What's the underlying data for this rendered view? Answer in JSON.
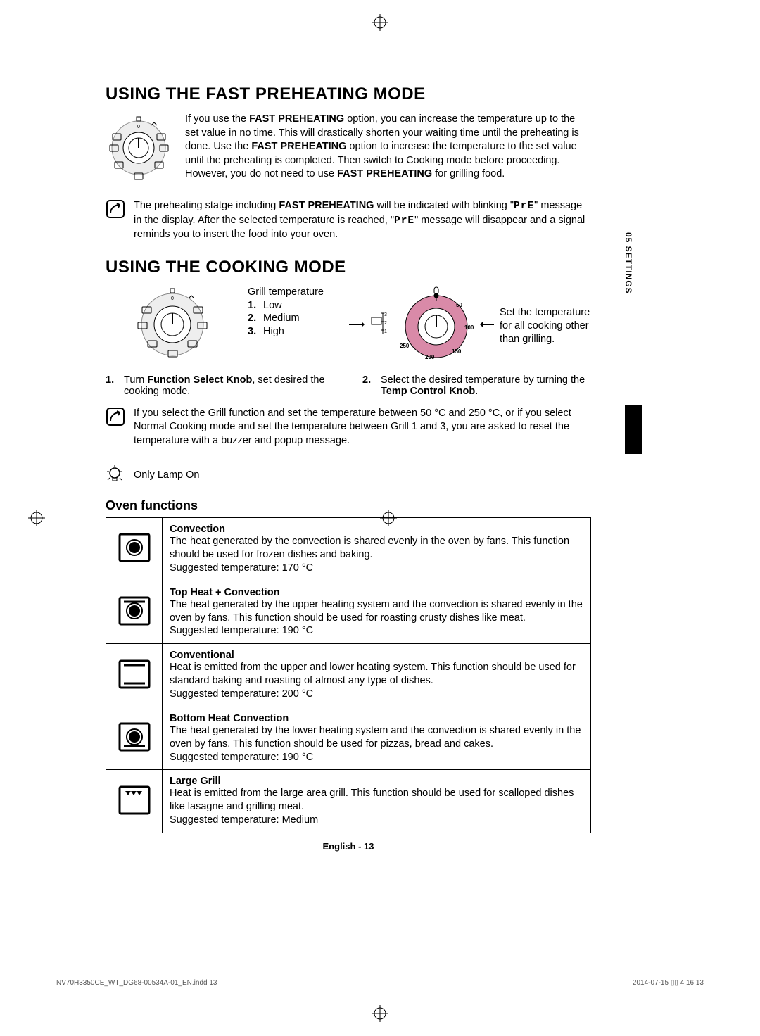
{
  "page": {
    "footer": "English - 13",
    "side_tab": "05  SETTINGS",
    "imprint_left": "NV70H3350CE_WT_DG68-00534A-01_EN.indd   13",
    "imprint_right": "2014-07-15   ▯▯ 4:16:13"
  },
  "section1": {
    "title": "USING THE FAST PREHEATING MODE",
    "intro_prefix": "If you use the ",
    "intro_bold1": "FAST PREHEATING",
    "intro_mid1": " option, you can increase the temperature up to the set value in no time. This will drastically shorten your waiting time until the preheating is done. Use the ",
    "intro_bold2": "FAST PREHEATING",
    "intro_mid2": " option to increase the temperature to the set value until the preheating is completed. Then switch to Cooking mode before proceeding. However, you do not need to use ",
    "intro_bold3": "FAST PREHEATING",
    "intro_suffix": " for grilling food.",
    "note_prefix": "The preheating statge including ",
    "note_bold": "FAST PREHEATING",
    "note_mid1": " will be indicated with blinking \"",
    "note_code1": "PrE",
    "note_mid2": "\" message in the display. After the selected temperature is reached, \"",
    "note_code2": "PrE",
    "note_suffix": "\" message will disappear and a signal reminds you to insert the food into your oven."
  },
  "section2": {
    "title": "USING THE COOKING MODE",
    "grill_label": "Grill temperature",
    "grill_levels": [
      "Low",
      "Medium",
      "High"
    ],
    "temp_caption": "Set the temperature for all cooking other than grilling.",
    "temp_dial": {
      "labels": [
        "50",
        "100",
        "150",
        "200",
        "250"
      ],
      "dial_fill": "#d98aa8",
      "dial_stroke": "#000000"
    },
    "grill_dial": {
      "labels": [
        "1",
        "2",
        "3"
      ]
    },
    "step1_num": "1.",
    "step1_prefix": "Turn ",
    "step1_bold": "Function Select Knob",
    "step1_suffix": ", set desired the cooking mode.",
    "step2_num": "2.",
    "step2_prefix": "Select the desired temperature by turning the ",
    "step2_bold": "Temp Control Knob",
    "step2_suffix": ".",
    "note2": "If you select the Grill function and set the temperature between 50 °C and 250 °C, or if you select Normal Cooking mode and set the temperature between Grill 1 and 3, you are asked to reset the temperature with a buzzer and popup message.",
    "lamp": "Only Lamp On"
  },
  "oven_functions": {
    "title": "Oven functions",
    "rows": [
      {
        "name": "Convection",
        "desc": "The heat generated by the convection is shared evenly in the oven by fans. This function should be used for frozen dishes and baking.",
        "temp": "Suggested temperature: 170 °C"
      },
      {
        "name": "Top Heat + Convection",
        "desc": "The heat generated by the upper heating system and the convection is shared evenly in the oven by fans. This function should be used for roasting crusty dishes like meat.",
        "temp": "Suggested temperature: 190 °C"
      },
      {
        "name": "Conventional",
        "desc": "Heat is emitted from the upper and lower heating system. This function should be used for standard baking and roasting of almost any type of dishes.",
        "temp": "Suggested temperature: 200 °C"
      },
      {
        "name": "Bottom Heat Convection",
        "desc": "The heat generated by the lower heating system and the convection is shared evenly in the oven by fans. This function should be used for pizzas, bread and cakes.",
        "temp": "Suggested temperature: 190 °C"
      },
      {
        "name": "Large Grill",
        "desc": "Heat is emitted from the large area grill. This function should be used for scalloped dishes like lasagne and grilling meat.",
        "temp": "Suggested temperature: Medium"
      }
    ]
  },
  "icons": {
    "convection": "fan",
    "top_conv": "top-fan",
    "conventional": "top-bottom",
    "bottom_conv": "bottom-fan",
    "large_grill": "grill"
  }
}
